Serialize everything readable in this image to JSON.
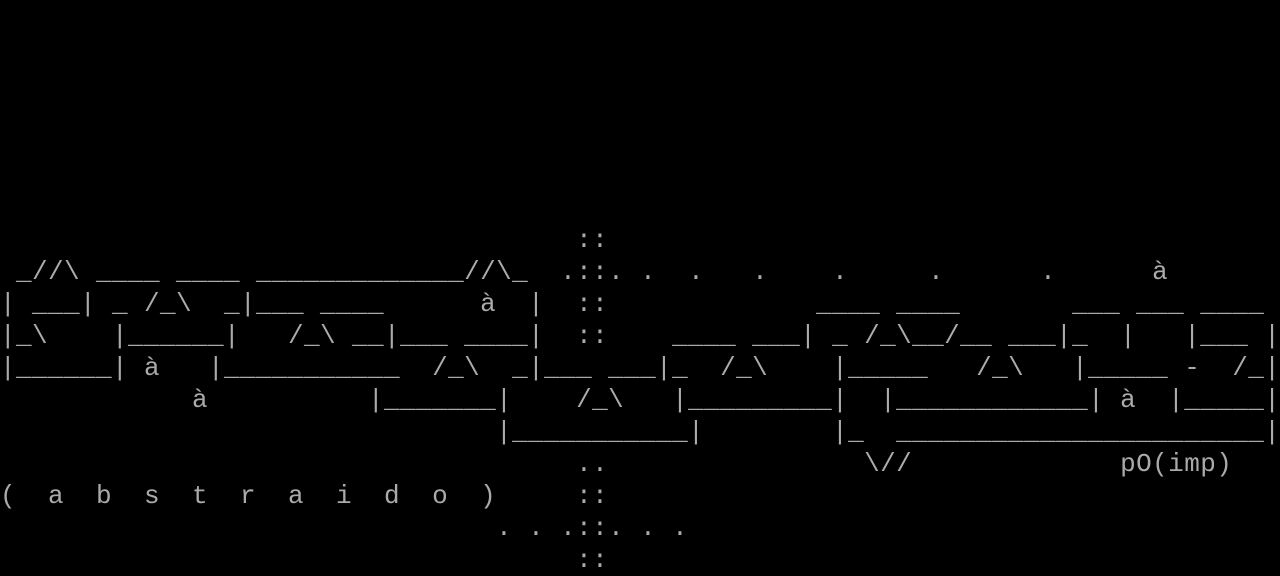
{
  "terminal": {
    "foreground": "#aaaaaa",
    "background": "#000000",
    "lines": [
      "",
      "",
      "",
      "",
      "",
      "",
      "",
      "                                    ::",
      " _//\\ ____ ____ _____________//\\_  .::. .  .   .    .     .      .      à",
      "| ___| _ /_\\  _|___ ____      à  |  ::             ____ ____       ___ ___ ____",
      "|_\\    |______|   /_\\ __|___ ____|  ::    ____ ___| _ /_\\__/__ ___|_  |   |___ |",
      "|______| à   |___________  /_\\  _|___ ___|_  /_\\    |_____   /_\\   |_____ -  /_|",
      "            à          |_______|    /_\\   |_________|  |____________| à  |_____|",
      "                               |___________|        |_  _______________________|",
      "                                    ..                \\//             pO(imp)",
      "(  a  b  s  t  r  a  i  d  o  )     ::",
      "                               . . .::. . .",
      "                                    ::"
    ]
  }
}
